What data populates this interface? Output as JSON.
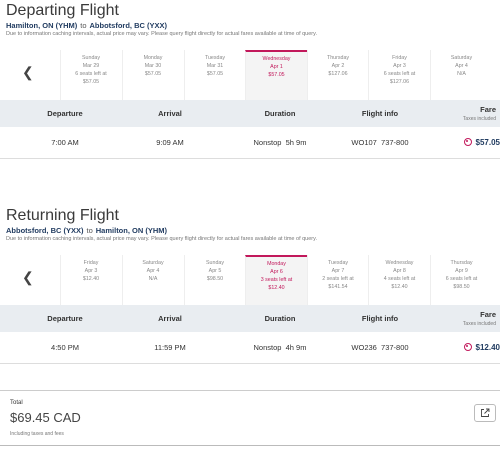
{
  "departing": {
    "title": "Departing Flight",
    "from": "Hamilton, ON (YHM)",
    "to_word": "to",
    "to": "Abbotsford, BC (YXX)",
    "note": "Due to information caching intervals, actual price may vary. Please query flight directly for actual fares available at time of query.",
    "dates": [
      {
        "weekday": "Sunday",
        "date": "Mar 29",
        "seats": "6 seats left at",
        "price": "$57.05"
      },
      {
        "weekday": "Monday",
        "date": "Mar 30",
        "seats": "",
        "price": "$57.05"
      },
      {
        "weekday": "Tuesday",
        "date": "Mar 31",
        "seats": "",
        "price": "$57.05"
      },
      {
        "weekday": "Wednesday",
        "date": "Apr 1",
        "seats": "",
        "price": "$57.05"
      },
      {
        "weekday": "Thursday",
        "date": "Apr 2",
        "seats": "",
        "price": "$127.06"
      },
      {
        "weekday": "Friday",
        "date": "Apr 3",
        "seats": "6 seats left at",
        "price": "$127.06"
      },
      {
        "weekday": "Saturday",
        "date": "Apr 4",
        "seats": "",
        "price": "N/A"
      }
    ],
    "headers": {
      "departure": "Departure",
      "arrival": "Arrival",
      "duration": "Duration",
      "flight_info": "Flight info",
      "fare": "Fare",
      "fare_sub": "Taxes included"
    },
    "flight": {
      "departure": "7:00 AM",
      "arrival": "9:09 AM",
      "stops": "Nonstop",
      "duration": "5h 9m",
      "number": "WO107",
      "aircraft": "737-800",
      "fare": "$57.05"
    }
  },
  "returning": {
    "title": "Returning Flight",
    "from": "Abbotsford, BC (YXX)",
    "to_word": "to",
    "to": "Hamilton, ON (YHM)",
    "note": "Due to information caching intervals, actual price may vary. Please query flight directly for actual fares available at time of query.",
    "dates": [
      {
        "weekday": "Friday",
        "date": "Apr 3",
        "seats": "",
        "price": "$12.40"
      },
      {
        "weekday": "Saturday",
        "date": "Apr 4",
        "seats": "",
        "price": "N/A"
      },
      {
        "weekday": "Sunday",
        "date": "Apr 5",
        "seats": "",
        "price": "$98.50"
      },
      {
        "weekday": "Monday",
        "date": "Apr 6",
        "seats": "3 seats left at",
        "price": "$12.40"
      },
      {
        "weekday": "Tuesday",
        "date": "Apr 7",
        "seats": "2 seats left at",
        "price": "$141.54"
      },
      {
        "weekday": "Wednesday",
        "date": "Apr 8",
        "seats": "4 seats left at",
        "price": "$12.40"
      },
      {
        "weekday": "Thursday",
        "date": "Apr 9",
        "seats": "6 seats left at",
        "price": "$98.50"
      }
    ],
    "headers": {
      "departure": "Departure",
      "arrival": "Arrival",
      "duration": "Duration",
      "flight_info": "Flight info",
      "fare": "Fare",
      "fare_sub": "Taxes included"
    },
    "flight": {
      "departure": "4:50 PM",
      "arrival": "11:59 PM",
      "stops": "Nonstop",
      "duration": "4h 9m",
      "number": "WO236",
      "aircraft": "737-800",
      "fare": "$12.40"
    }
  },
  "total": {
    "label": "Total",
    "amount": "$69.45 CAD",
    "note": "Including taxes and fees"
  },
  "icons": {
    "prev": "chevron-left-icon",
    "share": "external-link-icon",
    "radio": "radio-selected-icon"
  },
  "colors": {
    "accent": "#c2185b",
    "header_bg": "#e9edf1",
    "brand_text": "#1f3a5f"
  }
}
